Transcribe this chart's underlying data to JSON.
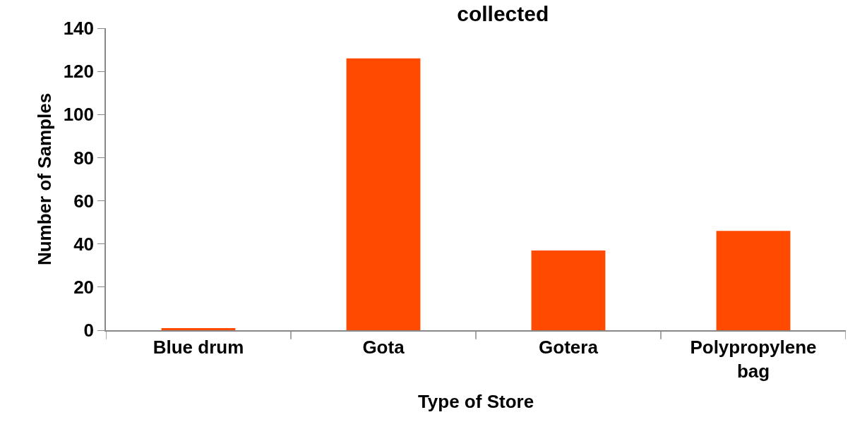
{
  "chart_data": {
    "type": "bar",
    "title": "collected",
    "xlabel": "Type of Store",
    "ylabel": "Number of Samples",
    "categories": [
      "Blue drum",
      "Gota",
      "Gotera",
      "Polypropylene bag"
    ],
    "values": [
      1,
      126,
      37,
      46
    ],
    "color": "#ff4a00",
    "ylim": [
      0,
      140
    ],
    "yticks": [
      0,
      20,
      40,
      60,
      80,
      100,
      120,
      140
    ]
  }
}
